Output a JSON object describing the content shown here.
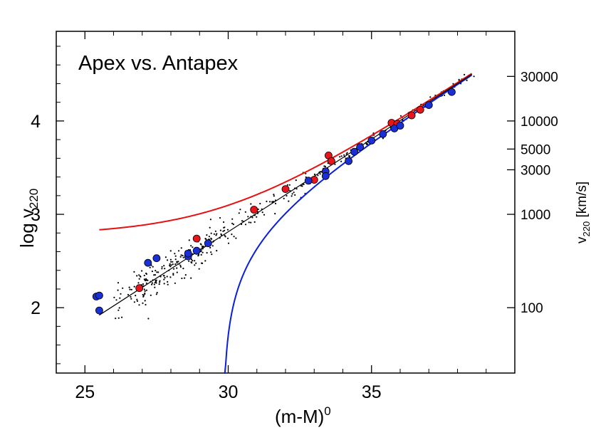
{
  "chart_data": {
    "type": "scatter",
    "title": "Apex vs. Antapex",
    "xlabel": "(m-M)",
    "xlabel_sup": "0",
    "ylabel": "log v",
    "ylabel_sub": "220",
    "y2label": "v",
    "y2label_sub": "220",
    "y2label_unit": " [km/s]",
    "xlim": [
      24,
      40
    ],
    "ylim": [
      1.3,
      4.96
    ],
    "x_ticks": [
      25,
      30,
      35
    ],
    "x_tick_labels": [
      "25",
      "30",
      "35"
    ],
    "y_ticks": [
      2,
      3,
      4
    ],
    "y_tick_labels": [
      "2",
      "3",
      "4"
    ],
    "y2_ticks": [
      100,
      1000,
      3000,
      5000,
      10000,
      30000
    ],
    "y2_tick_labels": [
      "100",
      "1000",
      "3000",
      "5000",
      "10000",
      "30000"
    ],
    "colors": {
      "red": "#e8161b",
      "blue": "#1a2fd6",
      "black": "#000000",
      "red_curve": "#e81010",
      "blue_curve": "#0a1ee0"
    },
    "series": [
      {
        "color": "red",
        "points": [
          [
            26.9,
            2.21
          ],
          [
            28.9,
            2.74
          ],
          [
            30.9,
            3.05
          ],
          [
            32.0,
            3.27
          ],
          [
            33.0,
            3.37
          ],
          [
            33.5,
            3.63
          ],
          [
            33.6,
            3.57
          ],
          [
            35.7,
            3.98
          ],
          [
            35.9,
            3.97
          ],
          [
            36.4,
            4.06
          ],
          [
            36.7,
            4.12
          ]
        ]
      },
      {
        "color": "blue",
        "points": [
          [
            25.4,
            2.12
          ],
          [
            25.5,
            2.13
          ],
          [
            25.5,
            1.97
          ],
          [
            27.2,
            2.48
          ],
          [
            27.5,
            2.53
          ],
          [
            28.6,
            2.55
          ],
          [
            28.6,
            2.58
          ],
          [
            28.9,
            2.61
          ],
          [
            29.3,
            2.69
          ],
          [
            32.8,
            3.36
          ],
          [
            33.4,
            3.46
          ],
          [
            33.4,
            3.41
          ],
          [
            34.2,
            3.57
          ],
          [
            34.4,
            3.67
          ],
          [
            34.6,
            3.72
          ],
          [
            35.0,
            3.79
          ],
          [
            35.4,
            3.86
          ],
          [
            35.8,
            3.92
          ],
          [
            36.0,
            3.95
          ],
          [
            37.0,
            4.17
          ],
          [
            37.8,
            4.31
          ]
        ]
      }
    ],
    "fit_line": {
      "color": "black",
      "x": [
        25.5,
        38.5
      ],
      "y": [
        1.92,
        4.5
      ]
    },
    "model_curves": [
      {
        "color": "red_curve",
        "sign": 1,
        "x_start": 25.5,
        "x_end": 38.5,
        "offset_kms": 600
      },
      {
        "color": "blue_curve",
        "sign": -1,
        "x_start": 29.3,
        "x_end": 38.5,
        "offset_kms": 600
      }
    ]
  }
}
